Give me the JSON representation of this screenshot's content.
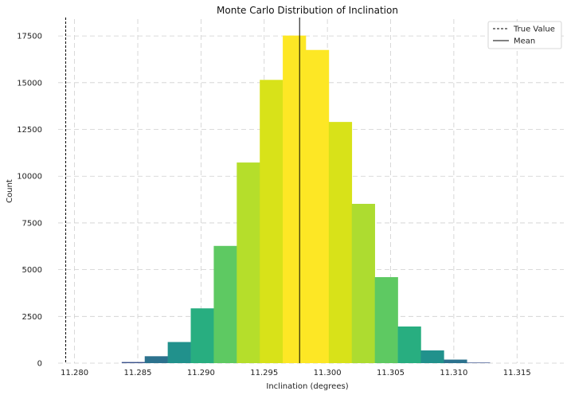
{
  "chart_data": {
    "type": "bar",
    "title": "Monte Carlo Distribution of Inclination",
    "xlabel": "Inclination (degrees)",
    "ylabel": "Count",
    "xlim": [
      11.2787,
      11.3187
    ],
    "ylim": [
      0,
      18400
    ],
    "x_ticks": [
      11.28,
      11.285,
      11.29,
      11.295,
      11.3,
      11.305,
      11.31,
      11.315
    ],
    "x_tick_labels": [
      "11.280",
      "11.285",
      "11.290",
      "11.295",
      "11.300",
      "11.305",
      "11.310",
      "11.315"
    ],
    "y_ticks": [
      0,
      2500,
      5000,
      7500,
      10000,
      12500,
      15000,
      17500
    ],
    "y_tick_labels": [
      "0",
      "2500",
      "5000",
      "7500",
      "10000",
      "12500",
      "15000",
      "17500"
    ],
    "grid": true,
    "bin_edges": [
      11.28373,
      11.28555,
      11.28737,
      11.28919,
      11.29101,
      11.29283,
      11.29465,
      11.29647,
      11.29829,
      11.30011,
      11.30193,
      11.30375,
      11.30557,
      11.30739,
      11.30921,
      11.31103,
      11.31285
    ],
    "counts": [
      60,
      370,
      1130,
      2930,
      6270,
      10730,
      15150,
      17520,
      16750,
      12900,
      8520,
      4600,
      1960,
      680,
      190,
      30
    ],
    "bar_colors": [
      "#3b528b",
      "#2c728e",
      "#21918c",
      "#28ae80",
      "#5ec962",
      "#b5de2b",
      "#d8e219",
      "#fde725",
      "#fde725",
      "#d8e219",
      "#addc30",
      "#5ec962",
      "#28ae80",
      "#21918c",
      "#2c728e",
      "#3b528b"
    ],
    "reference_lines": [
      {
        "name": "True Value",
        "x": 11.2793,
        "style": "dashed",
        "color": "#000000"
      },
      {
        "name": "Mean",
        "x": 11.2978,
        "style": "solid",
        "color": "#000000"
      }
    ],
    "legend": {
      "position": "top-right",
      "entries": [
        "True Value",
        "Mean"
      ]
    }
  }
}
